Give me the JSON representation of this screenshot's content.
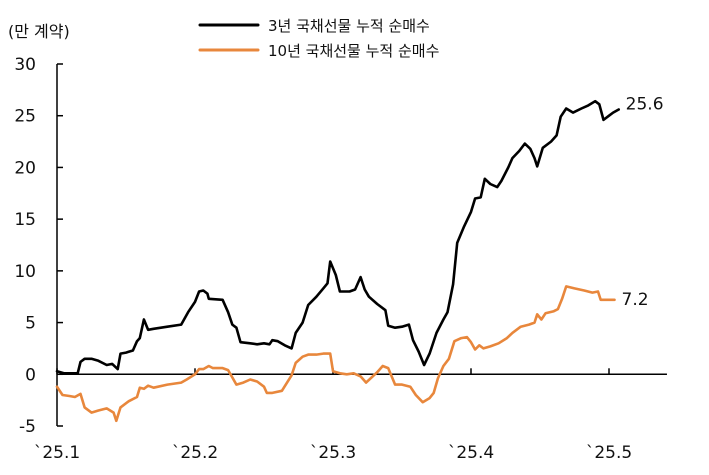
{
  "chart_data": {
    "type": "line",
    "unit_label": "(만 계약)",
    "ylim": [
      -5,
      30
    ],
    "yticks": [
      "30",
      "25",
      "20",
      "15",
      "10",
      "5",
      "0",
      "-5"
    ],
    "ytick_values": [
      30,
      25,
      20,
      15,
      10,
      5,
      0,
      -5
    ],
    "xticks": [
      "`25.1",
      "`25.2",
      "`25.3",
      "`25.4",
      "`25.5"
    ],
    "xtick_values": [
      0,
      1,
      2,
      3,
      4
    ],
    "xlim": [
      0,
      4.42
    ],
    "grid": false,
    "legend_position": "top-center",
    "series": [
      {
        "name": "3년 국채선물 누적 순매수",
        "color": "#000000",
        "end_label": "25.6",
        "points": [
          [
            0.0,
            0.3
          ],
          [
            0.05,
            0.1
          ],
          [
            0.15,
            0.1
          ],
          [
            0.17,
            1.2
          ],
          [
            0.2,
            1.5
          ],
          [
            0.25,
            1.5
          ],
          [
            0.3,
            1.3
          ],
          [
            0.33,
            1.1
          ],
          [
            0.36,
            0.9
          ],
          [
            0.4,
            1.0
          ],
          [
            0.44,
            0.5
          ],
          [
            0.46,
            2.0
          ],
          [
            0.5,
            2.1
          ],
          [
            0.55,
            2.3
          ],
          [
            0.58,
            3.2
          ],
          [
            0.6,
            3.5
          ],
          [
            0.63,
            5.3
          ],
          [
            0.66,
            4.3
          ],
          [
            0.7,
            4.4
          ],
          [
            0.8,
            4.6
          ],
          [
            0.9,
            4.8
          ],
          [
            0.95,
            6.0
          ],
          [
            1.0,
            7.0
          ],
          [
            1.03,
            8.0
          ],
          [
            1.06,
            8.1
          ],
          [
            1.09,
            7.8
          ],
          [
            1.1,
            7.3
          ],
          [
            1.2,
            7.2
          ],
          [
            1.24,
            6.0
          ],
          [
            1.27,
            4.8
          ],
          [
            1.3,
            4.5
          ],
          [
            1.33,
            3.1
          ],
          [
            1.4,
            3.0
          ],
          [
            1.45,
            2.9
          ],
          [
            1.5,
            3.0
          ],
          [
            1.54,
            2.9
          ],
          [
            1.56,
            3.3
          ],
          [
            1.6,
            3.2
          ],
          [
            1.65,
            2.8
          ],
          [
            1.7,
            2.5
          ],
          [
            1.73,
            4.0
          ],
          [
            1.78,
            5.0
          ],
          [
            1.82,
            6.7
          ],
          [
            1.88,
            7.5
          ],
          [
            1.93,
            8.3
          ],
          [
            1.96,
            8.8
          ],
          [
            1.98,
            10.9
          ],
          [
            2.02,
            9.6
          ],
          [
            2.05,
            8.0
          ],
          [
            2.12,
            8.0
          ],
          [
            2.16,
            8.2
          ],
          [
            2.2,
            9.4
          ],
          [
            2.23,
            8.2
          ],
          [
            2.26,
            7.5
          ],
          [
            2.32,
            6.8
          ],
          [
            2.38,
            6.2
          ],
          [
            2.4,
            4.7
          ],
          [
            2.45,
            4.5
          ],
          [
            2.5,
            4.6
          ],
          [
            2.55,
            4.8
          ],
          [
            2.58,
            3.3
          ],
          [
            2.62,
            2.2
          ],
          [
            2.66,
            0.9
          ],
          [
            2.7,
            2.0
          ],
          [
            2.75,
            4.0
          ],
          [
            2.8,
            5.3
          ],
          [
            2.83,
            6.0
          ],
          [
            2.87,
            8.7
          ],
          [
            2.9,
            12.7
          ],
          [
            2.95,
            14.3
          ],
          [
            3.0,
            15.7
          ],
          [
            3.03,
            17.0
          ],
          [
            3.07,
            17.1
          ],
          [
            3.1,
            18.9
          ],
          [
            3.14,
            18.4
          ],
          [
            3.19,
            18.1
          ],
          [
            3.22,
            18.7
          ],
          [
            3.27,
            20.0
          ],
          [
            3.3,
            20.9
          ],
          [
            3.35,
            21.6
          ],
          [
            3.39,
            22.3
          ],
          [
            3.43,
            21.8
          ],
          [
            3.46,
            20.9
          ],
          [
            3.48,
            20.1
          ],
          [
            3.52,
            21.9
          ],
          [
            3.58,
            22.5
          ],
          [
            3.62,
            23.1
          ],
          [
            3.65,
            24.9
          ],
          [
            3.69,
            25.7
          ],
          [
            3.74,
            25.3
          ],
          [
            3.8,
            25.7
          ],
          [
            3.85,
            26.0
          ],
          [
            3.9,
            26.4
          ],
          [
            3.93,
            26.1
          ],
          [
            3.96,
            24.6
          ],
          [
            4.0,
            25.0
          ],
          [
            4.03,
            25.3
          ],
          [
            4.07,
            25.6
          ]
        ]
      },
      {
        "name": "10년 국채선물 누적 순매수",
        "color": "#e8873c",
        "end_label": "7.2",
        "points": [
          [
            0.0,
            -1.2
          ],
          [
            0.04,
            -2.0
          ],
          [
            0.09,
            -2.1
          ],
          [
            0.13,
            -2.2
          ],
          [
            0.17,
            -1.9
          ],
          [
            0.2,
            -3.2
          ],
          [
            0.25,
            -3.7
          ],
          [
            0.3,
            -3.5
          ],
          [
            0.36,
            -3.3
          ],
          [
            0.41,
            -3.7
          ],
          [
            0.43,
            -4.5
          ],
          [
            0.46,
            -3.2
          ],
          [
            0.52,
            -2.6
          ],
          [
            0.58,
            -2.2
          ],
          [
            0.6,
            -1.3
          ],
          [
            0.63,
            -1.4
          ],
          [
            0.66,
            -1.1
          ],
          [
            0.7,
            -1.3
          ],
          [
            0.8,
            -1.0
          ],
          [
            0.9,
            -0.8
          ],
          [
            0.94,
            -0.5
          ],
          [
            1.0,
            0.0
          ],
          [
            1.03,
            0.5
          ],
          [
            1.06,
            0.5
          ],
          [
            1.1,
            0.8
          ],
          [
            1.13,
            0.6
          ],
          [
            1.2,
            0.6
          ],
          [
            1.24,
            0.4
          ],
          [
            1.27,
            -0.3
          ],
          [
            1.3,
            -1.0
          ],
          [
            1.35,
            -0.8
          ],
          [
            1.4,
            -0.5
          ],
          [
            1.45,
            -0.7
          ],
          [
            1.5,
            -1.2
          ],
          [
            1.52,
            -1.8
          ],
          [
            1.56,
            -1.8
          ],
          [
            1.63,
            -1.6
          ],
          [
            1.7,
            -0.1
          ],
          [
            1.73,
            1.1
          ],
          [
            1.78,
            1.7
          ],
          [
            1.82,
            1.9
          ],
          [
            1.88,
            1.9
          ],
          [
            1.93,
            2.0
          ],
          [
            1.98,
            2.0
          ],
          [
            2.0,
            0.3
          ],
          [
            2.05,
            0.1
          ],
          [
            2.1,
            0.0
          ],
          [
            2.15,
            0.1
          ],
          [
            2.2,
            -0.2
          ],
          [
            2.24,
            -0.8
          ],
          [
            2.28,
            -0.3
          ],
          [
            2.32,
            0.2
          ],
          [
            2.36,
            0.8
          ],
          [
            2.4,
            0.6
          ],
          [
            2.45,
            -1.0
          ],
          [
            2.5,
            -1.0
          ],
          [
            2.56,
            -1.2
          ],
          [
            2.6,
            -2.0
          ],
          [
            2.65,
            -2.7
          ],
          [
            2.7,
            -2.3
          ],
          [
            2.73,
            -1.8
          ],
          [
            2.76,
            -0.4
          ],
          [
            2.8,
            0.8
          ],
          [
            2.84,
            1.5
          ],
          [
            2.88,
            3.2
          ],
          [
            2.93,
            3.5
          ],
          [
            2.97,
            3.6
          ],
          [
            3.0,
            3.1
          ],
          [
            3.03,
            2.4
          ],
          [
            3.06,
            2.8
          ],
          [
            3.09,
            2.5
          ],
          [
            3.14,
            2.7
          ],
          [
            3.2,
            3.0
          ],
          [
            3.26,
            3.5
          ],
          [
            3.3,
            4.0
          ],
          [
            3.36,
            4.6
          ],
          [
            3.42,
            4.8
          ],
          [
            3.46,
            5.0
          ],
          [
            3.48,
            5.8
          ],
          [
            3.51,
            5.3
          ],
          [
            3.54,
            5.9
          ],
          [
            3.6,
            6.1
          ],
          [
            3.63,
            6.3
          ],
          [
            3.66,
            7.3
          ],
          [
            3.69,
            8.5
          ],
          [
            3.75,
            8.3
          ],
          [
            3.82,
            8.1
          ],
          [
            3.88,
            7.9
          ],
          [
            3.92,
            8.0
          ],
          [
            3.94,
            7.2
          ],
          [
            4.0,
            7.2
          ],
          [
            4.04,
            7.2
          ]
        ]
      }
    ]
  }
}
